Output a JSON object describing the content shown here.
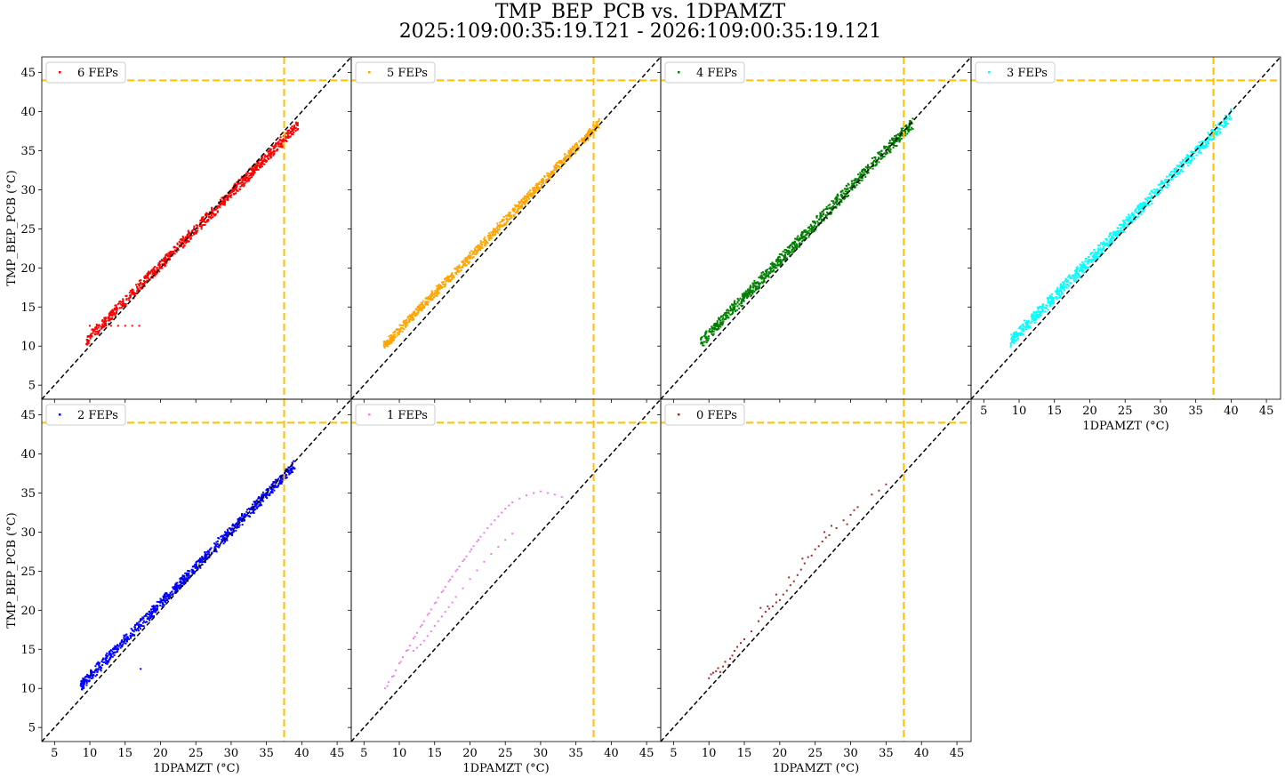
{
  "figure": {
    "title_line1": "TMP_BEP_PCB vs. 1DPAMZT",
    "title_line2": "2025:109:00:35:19.121 - 2026:109:00:35:19.121"
  },
  "colors": {
    "limit_line": "#ffc000",
    "diagonal": "#000000"
  },
  "chart_data": [
    {
      "type": "scatter",
      "legend": "6 FEPs",
      "color": "#ff0000",
      "xlabel": "1DPAMZT (°C)",
      "ylabel": "TMP_BEP_PCB (°C)",
      "xlim": [
        3.2,
        47.0
      ],
      "ylim": [
        3.2,
        47.0
      ],
      "xticks": [
        5,
        10,
        15,
        20,
        25,
        30,
        35,
        40,
        45
      ],
      "yticks": [
        5,
        10,
        15,
        20,
        25,
        30,
        35,
        40,
        45
      ],
      "show_xticklabels": false,
      "show_yticklabels": true,
      "limit_x": 37.5,
      "limit_y": 44.0,
      "grid": false,
      "legend_position": "upper-left",
      "band": {
        "x_start": 9.5,
        "x_end": 39.5,
        "y_start_center": 10.7,
        "y_end_center": 38.3,
        "width": 1.6
      },
      "extra_points": [
        [
          10.0,
          12.6
        ],
        [
          11.0,
          12.6
        ],
        [
          12.0,
          12.6
        ],
        [
          13.0,
          12.6
        ],
        [
          14.0,
          12.6
        ],
        [
          15.0,
          12.6
        ],
        [
          16.0,
          12.6
        ],
        [
          17.0,
          12.6
        ]
      ]
    },
    {
      "type": "scatter",
      "legend": "5 FEPs",
      "color": "#ffa500",
      "xlabel": "1DPAMZT (°C)",
      "ylabel": "TMP_BEP_PCB (°C)",
      "xlim": [
        3.2,
        47.0
      ],
      "ylim": [
        3.2,
        47.0
      ],
      "xticks": [
        5,
        10,
        15,
        20,
        25,
        30,
        35,
        40,
        45
      ],
      "yticks": [
        5,
        10,
        15,
        20,
        25,
        30,
        35,
        40,
        45
      ],
      "show_xticklabels": false,
      "show_yticklabels": false,
      "limit_x": 37.5,
      "limit_y": 44.0,
      "grid": false,
      "legend_position": "upper-left",
      "band": {
        "x_start": 7.8,
        "x_end": 38.3,
        "y_start_center": 10.0,
        "y_end_center": 38.5,
        "width": 1.4
      },
      "extra_points": []
    },
    {
      "type": "scatter",
      "legend": "4 FEPs",
      "color": "#008000",
      "xlabel": "1DPAMZT (°C)",
      "ylabel": "TMP_BEP_PCB (°C)",
      "xlim": [
        3.2,
        47.0
      ],
      "ylim": [
        3.2,
        47.0
      ],
      "xticks": [
        5,
        10,
        15,
        20,
        25,
        30,
        35,
        40,
        45
      ],
      "yticks": [
        5,
        10,
        15,
        20,
        25,
        30,
        35,
        40,
        45
      ],
      "show_xticklabels": false,
      "show_yticklabels": false,
      "limit_x": 37.5,
      "limit_y": 44.0,
      "grid": false,
      "legend_position": "upper-left",
      "band": {
        "x_start": 8.8,
        "x_end": 38.8,
        "y_start_center": 10.4,
        "y_end_center": 38.6,
        "width": 1.8
      },
      "extra_points": []
    },
    {
      "type": "scatter",
      "legend": "3 FEPs",
      "color": "#00ffff",
      "xlabel": "1DPAMZT (°C)",
      "ylabel": "TMP_BEP_PCB (°C)",
      "xlim": [
        3.2,
        47.0
      ],
      "ylim": [
        3.2,
        47.0
      ],
      "xticks": [
        5,
        10,
        15,
        20,
        25,
        30,
        35,
        40,
        45
      ],
      "yticks": [
        5,
        10,
        15,
        20,
        25,
        30,
        35,
        40,
        45
      ],
      "show_xticklabels": true,
      "show_yticklabels": false,
      "limit_x": 37.5,
      "limit_y": 44.0,
      "grid": false,
      "legend_position": "upper-left",
      "band": {
        "x_start": 8.8,
        "x_end": 40.0,
        "y_start_center": 10.6,
        "y_end_center": 39.5,
        "width": 1.8
      },
      "extra_points": []
    },
    {
      "type": "scatter",
      "legend": "2 FEPs",
      "color": "#0000ff",
      "xlabel": "1DPAMZT (°C)",
      "ylabel": "TMP_BEP_PCB (°C)",
      "xlim": [
        3.2,
        47.0
      ],
      "ylim": [
        3.2,
        47.0
      ],
      "xticks": [
        5,
        10,
        15,
        20,
        25,
        30,
        35,
        40,
        45
      ],
      "yticks": [
        5,
        10,
        15,
        20,
        25,
        30,
        35,
        40,
        45
      ],
      "show_xticklabels": true,
      "show_yticklabels": true,
      "limit_x": 37.5,
      "limit_y": 44.0,
      "grid": false,
      "legend_position": "upper-left",
      "band": {
        "x_start": 8.7,
        "x_end": 39.0,
        "y_start_center": 10.3,
        "y_end_center": 38.6,
        "width": 1.6
      },
      "extra_points": [
        [
          17.2,
          12.5
        ]
      ]
    },
    {
      "type": "scatter",
      "legend": "1 FEPs",
      "color": "#ee82ee",
      "xlabel": "1DPAMZT (°C)",
      "ylabel": "TMP_BEP_PCB (°C)",
      "xlim": [
        3.2,
        47.0
      ],
      "ylim": [
        3.2,
        47.0
      ],
      "xticks": [
        5,
        10,
        15,
        20,
        25,
        30,
        35,
        40,
        45
      ],
      "yticks": [
        5,
        10,
        15,
        20,
        25,
        30,
        35,
        40,
        45
      ],
      "show_xticklabels": true,
      "show_yticklabels": false,
      "limit_x": 37.5,
      "limit_y": 44.0,
      "grid": false,
      "legend_position": "upper-left",
      "points": [
        [
          8.0,
          10.0
        ],
        [
          8.5,
          10.8
        ],
        [
          9.0,
          11.5
        ],
        [
          9.5,
          12.3
        ],
        [
          10.0,
          13.2
        ],
        [
          10.5,
          14.0
        ],
        [
          11.0,
          14.8
        ],
        [
          11.5,
          15.5
        ],
        [
          12.0,
          16.4
        ],
        [
          12.5,
          17.1
        ],
        [
          13.0,
          17.9
        ],
        [
          13.5,
          18.6
        ],
        [
          14.0,
          19.4
        ],
        [
          14.5,
          20.1
        ],
        [
          15.0,
          20.9
        ],
        [
          15.5,
          21.6
        ],
        [
          16.0,
          22.3
        ],
        [
          16.5,
          23.0
        ],
        [
          17.0,
          23.7
        ],
        [
          17.5,
          24.3
        ],
        [
          18.0,
          25.0
        ],
        [
          18.5,
          25.6
        ],
        [
          19.0,
          26.3
        ],
        [
          19.5,
          26.9
        ],
        [
          20.0,
          27.5
        ],
        [
          20.5,
          28.2
        ],
        [
          21.0,
          28.8
        ],
        [
          21.5,
          29.4
        ],
        [
          22.0,
          29.9
        ],
        [
          22.5,
          30.5
        ],
        [
          23.0,
          31.0
        ],
        [
          23.5,
          31.5
        ],
        [
          24.0,
          32.0
        ],
        [
          24.5,
          32.5
        ],
        [
          25.0,
          33.0
        ],
        [
          25.5,
          33.4
        ],
        [
          26.0,
          33.8
        ],
        [
          27.0,
          34.3
        ],
        [
          28.0,
          34.7
        ],
        [
          29.0,
          35.0
        ],
        [
          30.0,
          35.2
        ],
        [
          31.0,
          35.0
        ],
        [
          32.0,
          34.8
        ],
        [
          33.0,
          34.5
        ],
        [
          12.0,
          14.8
        ],
        [
          12.5,
          15.2
        ],
        [
          13.0,
          15.6
        ],
        [
          13.5,
          16.1
        ],
        [
          14.0,
          16.7
        ],
        [
          14.5,
          17.3
        ],
        [
          15.0,
          18.0
        ],
        [
          15.5,
          18.6
        ],
        [
          16.0,
          19.2
        ],
        [
          16.5,
          19.8
        ],
        [
          17.0,
          20.4
        ],
        [
          17.5,
          21.0
        ],
        [
          18.0,
          21.7
        ],
        [
          19.0,
          22.8
        ],
        [
          20.0,
          24.0
        ],
        [
          21.0,
          25.1
        ],
        [
          22.0,
          26.2
        ],
        [
          23.0,
          27.2
        ],
        [
          24.0,
          28.1
        ],
        [
          25.0,
          29.0
        ],
        [
          26.0,
          29.8
        ],
        [
          8.3,
          10.3
        ],
        [
          9.2,
          11.6
        ],
        [
          10.2,
          13.4
        ],
        [
          11.2,
          14.9
        ],
        [
          12.2,
          16.6
        ],
        [
          13.2,
          18.1
        ],
        [
          14.2,
          19.6
        ],
        [
          15.2,
          21.0
        ],
        [
          16.2,
          22.5
        ],
        [
          17.2,
          23.9
        ],
        [
          18.2,
          25.2
        ],
        [
          19.2,
          26.5
        ],
        [
          20.2,
          27.8
        ],
        [
          21.2,
          29.0
        ]
      ],
      "extra_points": []
    },
    {
      "type": "scatter",
      "legend": "0 FEPs",
      "color": "#a52a2a",
      "xlabel": "1DPAMZT (°C)",
      "ylabel": "TMP_BEP_PCB (°C)",
      "xlim": [
        3.2,
        47.0
      ],
      "ylim": [
        3.2,
        47.0
      ],
      "xticks": [
        5,
        10,
        15,
        20,
        25,
        30,
        35,
        40,
        45
      ],
      "yticks": [
        5,
        10,
        15,
        20,
        25,
        30,
        35,
        40,
        45
      ],
      "show_xticklabels": true,
      "show_yticklabels": false,
      "limit_x": 37.5,
      "limit_y": 44.0,
      "grid": false,
      "legend_position": "upper-left",
      "points": [
        [
          10.0,
          11.3
        ],
        [
          10.3,
          11.8
        ],
        [
          10.6,
          12.0
        ],
        [
          11.0,
          12.2
        ],
        [
          11.3,
          12.6
        ],
        [
          11.6,
          12.1
        ],
        [
          12.0,
          12.8
        ],
        [
          12.3,
          13.4
        ],
        [
          12.8,
          13.0
        ],
        [
          13.0,
          13.8
        ],
        [
          13.3,
          14.2
        ],
        [
          13.6,
          14.8
        ],
        [
          14.0,
          15.3
        ],
        [
          14.5,
          15.8
        ],
        [
          15.0,
          16.3
        ],
        [
          16.0,
          17.3
        ],
        [
          17.0,
          18.6
        ],
        [
          17.5,
          19.2
        ],
        [
          18.0,
          19.8
        ],
        [
          18.5,
          20.2
        ],
        [
          19.0,
          20.5
        ],
        [
          19.5,
          21.0
        ],
        [
          20.0,
          21.3
        ],
        [
          20.5,
          22.0
        ],
        [
          21.0,
          22.5
        ],
        [
          21.5,
          23.2
        ],
        [
          22.0,
          23.7
        ],
        [
          22.5,
          24.5
        ],
        [
          23.0,
          25.2
        ],
        [
          23.5,
          26.0
        ],
        [
          24.0,
          26.8
        ],
        [
          24.5,
          27.0
        ],
        [
          25.0,
          27.8
        ],
        [
          25.5,
          28.2
        ],
        [
          26.0,
          28.8
        ],
        [
          26.5,
          29.3
        ],
        [
          27.0,
          29.6
        ],
        [
          28.0,
          30.5
        ],
        [
          29.0,
          31.5
        ],
        [
          30.0,
          32.2
        ],
        [
          30.5,
          32.8
        ],
        [
          31.0,
          33.2
        ],
        [
          33.0,
          34.8
        ],
        [
          34.0,
          35.3
        ],
        [
          35.0,
          36.1
        ],
        [
          17.3,
          20.3
        ],
        [
          18.3,
          20.5
        ],
        [
          19.5,
          22.0
        ],
        [
          21.3,
          24.2
        ],
        [
          23.2,
          26.6
        ],
        [
          26.3,
          30.0
        ],
        [
          27.3,
          30.8
        ],
        [
          29.5,
          31.0
        ]
      ],
      "extra_points": []
    }
  ]
}
